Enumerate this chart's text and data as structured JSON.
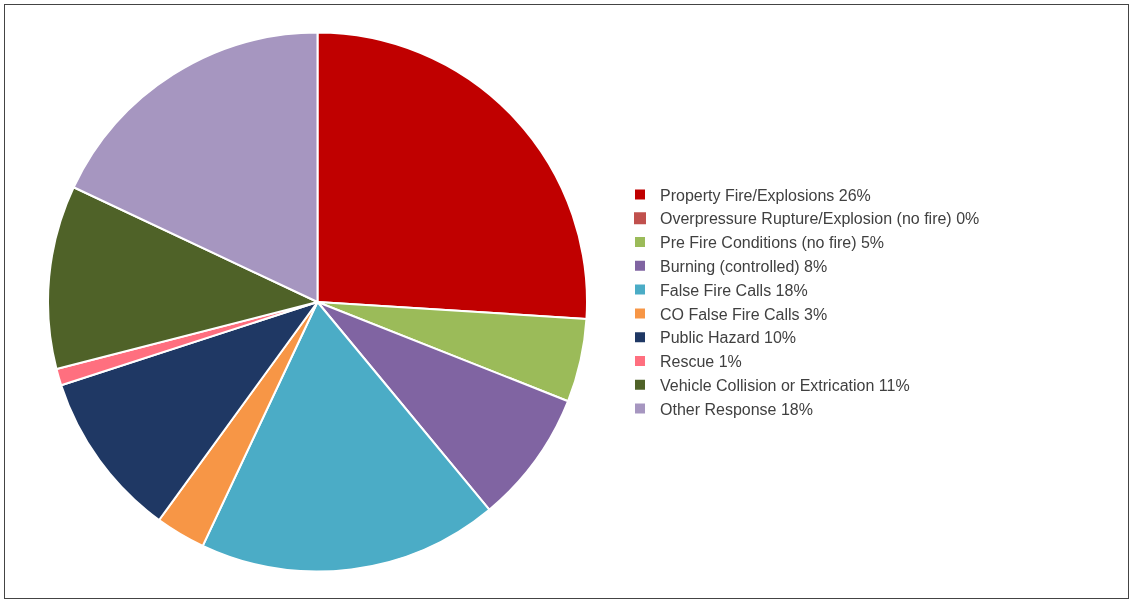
{
  "chart_data": {
    "type": "pie",
    "categories": [
      "Property Fire/Explosions 26%",
      "Overpressure Rupture/Explosion (no fire) 0%",
      "Pre Fire Conditions (no fire) 5%",
      "Burning (controlled) 8%",
      "False Fire Calls 18%",
      "CO False Fire Calls 3%",
      "Public Hazard 10%",
      "Rescue 1%",
      "Vehicle Collision or Extrication 11%",
      "Other Response 18%"
    ],
    "values": [
      26,
      0,
      5,
      8,
      18,
      3,
      10,
      1,
      11,
      18
    ],
    "colors": [
      "#c00000",
      "#c0504d",
      "#9bbb59",
      "#8064a2",
      "#4bacc6",
      "#f79646",
      "#1f3864",
      "#ff6f7f",
      "#4f6228",
      "#a696c0"
    ],
    "legend": "right"
  }
}
